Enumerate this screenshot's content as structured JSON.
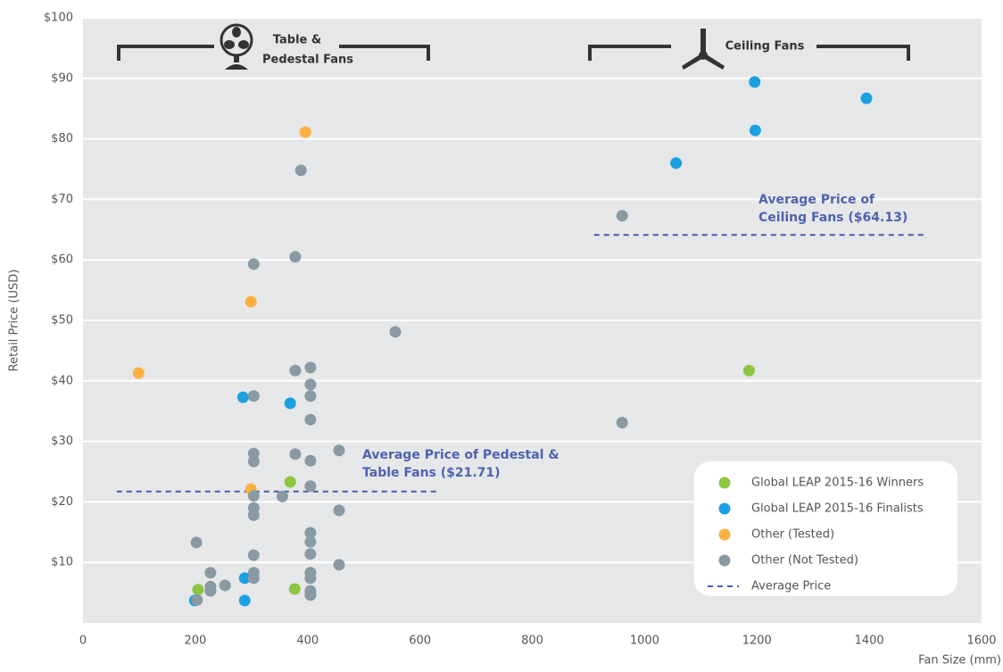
{
  "chart_data": {
    "type": "scatter",
    "xlabel": "Fan Size (mm)",
    "ylabel": "Retail Price (USD)",
    "xlim": [
      0,
      1600
    ],
    "xticks": [
      0,
      200,
      400,
      600,
      800,
      1000,
      1200,
      1400,
      1600
    ],
    "ylim": [
      0,
      100
    ],
    "yticks": [
      {
        "value": 10,
        "label": "$10"
      },
      {
        "value": 20,
        "label": "$20"
      },
      {
        "value": 30,
        "label": "$30"
      },
      {
        "value": 40,
        "label": "$40"
      },
      {
        "value": 50,
        "label": "$50"
      },
      {
        "value": 60,
        "label": "$60"
      },
      {
        "value": 70,
        "label": "$70"
      },
      {
        "value": 80,
        "label": "$80"
      },
      {
        "value": 90,
        "label": "$90"
      },
      {
        "value": 100,
        "label": "$100"
      }
    ],
    "grid": true,
    "groups": [
      {
        "label": [
          "Table &",
          "Pedestal Fans"
        ]
      },
      {
        "label": [
          "Ceiling Fans"
        ]
      }
    ],
    "averages": [
      {
        "label": [
          "Average Price of Pedestal &",
          "Table Fans ($21.71)"
        ],
        "value": 21.71,
        "xrange": [
          60,
          630
        ]
      },
      {
        "label": [
          "Average Price of",
          "Ceiling Fans ($64.13)"
        ],
        "value": 64.13,
        "xrange": [
          910,
          1500
        ]
      }
    ],
    "average_legend": "Average Price",
    "average_color": "#4a5ba8",
    "series": [
      {
        "name": "Global LEAP 2015-16 Winners",
        "color": "#8dc63f",
        "x": [
          205,
          369,
          377,
          1186
        ],
        "values": [
          5.5,
          23.3,
          5.6,
          41.7
        ]
      },
      {
        "name": "Global LEAP 2015-16 Finalists",
        "color": "#1ba1e2",
        "x": [
          1196,
          1395,
          1197,
          1056,
          285,
          369,
          199,
          288,
          288
        ],
        "values": [
          89.4,
          86.7,
          81.4,
          76,
          37.3,
          36.3,
          3.7,
          7.4,
          3.7
        ]
      },
      {
        "name": "Other (Tested)",
        "color": "#fbb040",
        "x": [
          396,
          299,
          99,
          299
        ],
        "values": [
          81.1,
          53.1,
          41.3,
          22.1
        ]
      },
      {
        "name": "Other (Not Tested)",
        "color": "#8a9aa4",
        "x": [
          388,
          304,
          378,
          556,
          378,
          405,
          405,
          304,
          405,
          405,
          304,
          304,
          378,
          405,
          456,
          304,
          355,
          405,
          304,
          304,
          456,
          202,
          405,
          405,
          405,
          304,
          456,
          227,
          304,
          405,
          405,
          304,
          253,
          227,
          227,
          405,
          405,
          203,
          960,
          960
        ],
        "values": [
          74.8,
          59.3,
          60.5,
          48.1,
          41.7,
          42.2,
          39.4,
          37.5,
          37.5,
          33.6,
          28,
          26.7,
          27.9,
          26.8,
          28.5,
          21,
          20.9,
          22.6,
          19,
          17.8,
          18.6,
          13.3,
          14.9,
          13.4,
          11.4,
          11.2,
          9.6,
          8.3,
          8.3,
          8.3,
          7.4,
          7.4,
          6.2,
          6,
          5.3,
          5.3,
          4.6,
          3.8,
          67.3,
          33.1
        ]
      }
    ]
  }
}
